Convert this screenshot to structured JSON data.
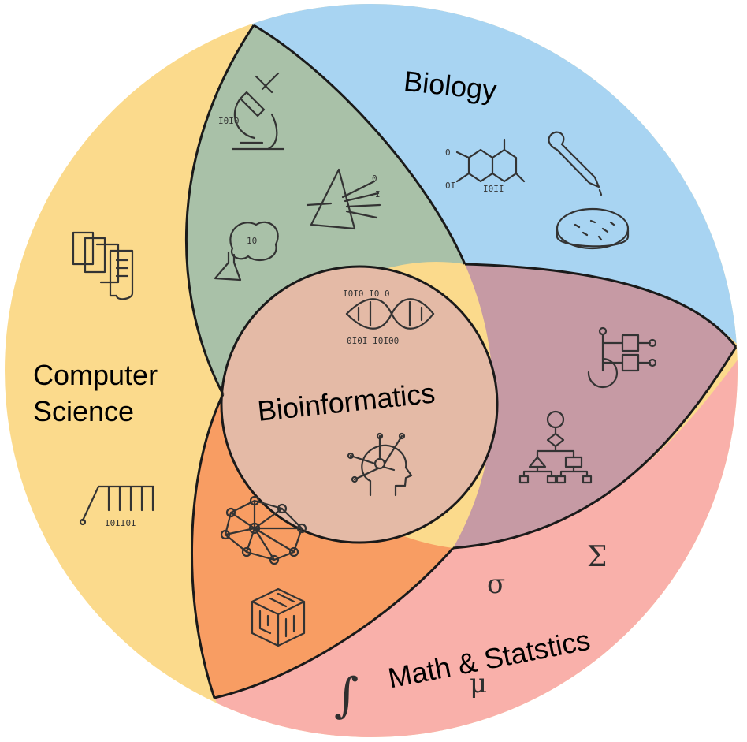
{
  "regions": {
    "biology": {
      "label": "Biology",
      "color": "#a8d4f2"
    },
    "computer_science": {
      "label_line1": "Computer",
      "label_line2": "Science",
      "color": "#fbda8c"
    },
    "math_statistics": {
      "label": "Math & Statstics",
      "color": "#f9b0aa"
    },
    "center": {
      "label": "Bioinformatics",
      "color": "#e4baa6"
    },
    "bio_cs_overlap": {
      "color": "#a9c1a8"
    },
    "bio_math_overlap": {
      "color": "#c69aa4"
    },
    "cs_math_overlap": {
      "color": "#f89d63"
    }
  },
  "math_symbols": {
    "sigma_lower": "σ",
    "sigma_upper": "Σ",
    "integral": "∫",
    "mu": "μ"
  },
  "icons": [
    "microscope-icon",
    "flask-icon",
    "prism-icon",
    "molecule-icon",
    "pipette-icon",
    "petri-dish-icon",
    "documents-icon",
    "newtons-cradle-icon",
    "dna-icon",
    "ai-head-icon",
    "graph-tree-icon",
    "flowchart-icon",
    "neural-network-icon",
    "maze-cube-icon"
  ]
}
